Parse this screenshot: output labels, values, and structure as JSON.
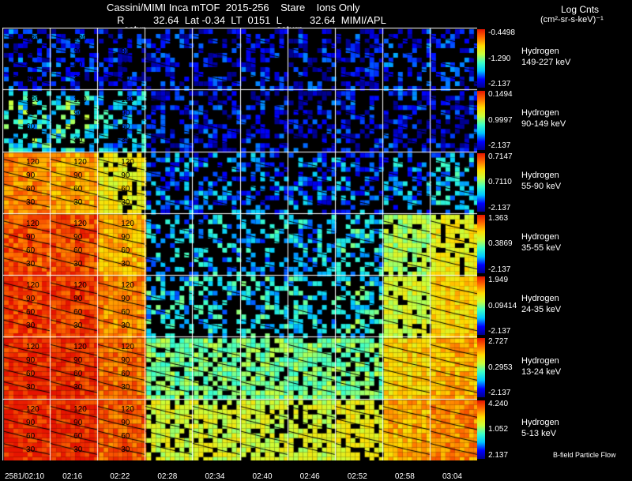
{
  "header": {
    "line1": "Cassini/MIMI Inca mTOF  2015-256    Stare    Ions Only",
    "line2_r": "R",
    "line2_vals": "32.64  Lat -0.34  LT  0151  L",
    "line2_l": "32.64  MIMI/APL",
    "satur1": "satur",
    "satur2": "saturn",
    "units_title": "Log Cnts",
    "units": "(cm²-sr-s-keV)⁻¹"
  },
  "bands": [
    {
      "species": "Hydrogen",
      "energy": "149-227 keV",
      "max": "-0.4498",
      "mid": "-1.290",
      "min": "-2.137"
    },
    {
      "species": "Hydrogen",
      "energy": "90-149 keV",
      "max": "0.1494",
      "mid": "0.9997",
      "min": "-2.137"
    },
    {
      "species": "Hydrogen",
      "energy": "55-90 keV",
      "max": "0.7147",
      "mid": "0.7110",
      "min": "-2.137"
    },
    {
      "species": "Hydrogen",
      "energy": "35-55 keV",
      "max": "1.363",
      "mid": "0.3869",
      "min": "-2.137"
    },
    {
      "species": "Hydrogen",
      "energy": "24-35 keV",
      "max": "1.949",
      "mid": "0.09414",
      "min": "-2.137"
    },
    {
      "species": "Hydrogen",
      "energy": "13-24 keV",
      "max": "2.727",
      "mid": "0.2953",
      "min": "-2.137"
    },
    {
      "species": "Hydrogen",
      "energy": "5-13 keV",
      "max": "4.240",
      "mid": "1.052",
      "min": "2.137"
    }
  ],
  "times": [
    "2581/02:10",
    "02:16",
    "02:22",
    "02:28",
    "02:34",
    "02:40",
    "02:46",
    "02:52",
    "02:58",
    "03:04"
  ],
  "ring_labels": [
    "120",
    "90",
    "60",
    "30"
  ],
  "footer": "B-field  Particle Flow",
  "colors": {
    "background": "#000000",
    "grid": "#ffffff"
  },
  "band_levels": [
    [
      0.15,
      0.15,
      0.12,
      0.12,
      0.1,
      0.12,
      0.12,
      0.12,
      0.15,
      0.15
    ],
    [
      0.45,
      0.45,
      0.35,
      0.12,
      0.12,
      0.12,
      0.12,
      0.12,
      0.12,
      0.12
    ],
    [
      0.85,
      0.82,
      0.7,
      0.25,
      0.25,
      0.25,
      0.25,
      0.25,
      0.3,
      0.35
    ],
    [
      0.92,
      0.92,
      0.8,
      0.35,
      0.35,
      0.35,
      0.35,
      0.4,
      0.6,
      0.7
    ],
    [
      0.95,
      0.95,
      0.85,
      0.4,
      0.4,
      0.4,
      0.4,
      0.45,
      0.65,
      0.75
    ],
    [
      0.97,
      0.97,
      0.88,
      0.55,
      0.55,
      0.55,
      0.55,
      0.55,
      0.75,
      0.8
    ],
    [
      0.98,
      0.98,
      0.9,
      0.65,
      0.65,
      0.65,
      0.65,
      0.7,
      0.8,
      0.85
    ]
  ]
}
